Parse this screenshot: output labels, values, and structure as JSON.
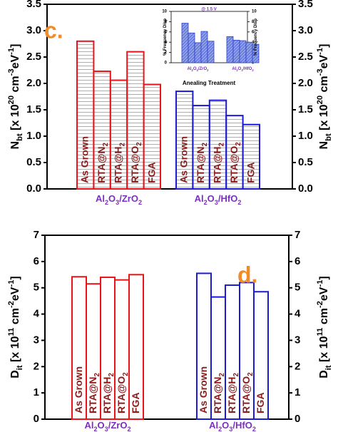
{
  "chart_data": [
    {
      "type": "grouped-bar",
      "panel_label": "c.",
      "ylabel": [
        {
          "text": "N"
        },
        {
          "text": "bt",
          "sub": true
        },
        {
          "text": " [x 10"
        },
        {
          "text": "20",
          "sup": true
        },
        {
          "text": " cm"
        },
        {
          "text": "-3",
          "sup": true
        },
        {
          "text": "eV"
        },
        {
          "text": "-1",
          "sup": true
        },
        {
          "text": "]"
        }
      ],
      "categories": [
        [
          {
            "text": "As Grown"
          }
        ],
        [
          {
            "text": "RTA@N"
          },
          {
            "text": "2",
            "sub": true
          }
        ],
        [
          {
            "text": "RTA@H"
          },
          {
            "text": "2",
            "sub": true
          }
        ],
        [
          {
            "text": "RTA@O"
          },
          {
            "text": "2",
            "sub": true
          }
        ],
        [
          {
            "text": "FGA"
          }
        ]
      ],
      "groups": [
        {
          "name": [
            {
              "text": "Al"
            },
            {
              "text": "2",
              "sub": true
            },
            {
              "text": "O"
            },
            {
              "text": "3",
              "sub": true
            },
            {
              "text": "/ZrO"
            },
            {
              "text": "2",
              "sub": true
            }
          ],
          "color": "#e8141a",
          "values": [
            2.8,
            2.23,
            2.06,
            2.6,
            1.98
          ]
        },
        {
          "name": [
            {
              "text": "Al"
            },
            {
              "text": "2",
              "sub": true
            },
            {
              "text": "O"
            },
            {
              "text": "3",
              "sub": true
            },
            {
              "text": "/HfO"
            },
            {
              "text": "2",
              "sub": true
            }
          ],
          "color": "#1b1bd6",
          "values": [
            1.85,
            1.58,
            1.68,
            1.39,
            1.22
          ]
        }
      ],
      "ylim": [
        0,
        3.5
      ],
      "yticks": [
        {
          "value": 0,
          "label": "0.0"
        },
        {
          "value": 0.5,
          "label": "0.5"
        },
        {
          "value": 1,
          "label": "1.0"
        },
        {
          "value": 1.5,
          "label": "1.5"
        },
        {
          "value": 2,
          "label": "2.0"
        },
        {
          "value": 2.5,
          "label": "2.5"
        },
        {
          "value": 3,
          "label": "3.0"
        },
        {
          "value": 3.5,
          "label": "3.5"
        }
      ],
      "hatch": "horizontal",
      "label_color": "#8b1a1a",
      "group_label_color": "#7b2fbf",
      "panel_label_color": "#f28c28"
    },
    {
      "type": "inset-bar",
      "title": "@ 1.5 V",
      "ylabel": [
        {
          "text": "% Frequency Disp"
        }
      ],
      "xlabel": [
        {
          "text": "Anealing Treatment"
        }
      ],
      "groups": [
        {
          "name": [
            {
              "text": "Al"
            },
            {
              "text": "2",
              "sub": true
            },
            {
              "text": "O"
            },
            {
              "text": "3",
              "sub": true
            },
            {
              "text": "/ZrO"
            },
            {
              "text": "2",
              "sub": true
            }
          ],
          "color": "#2a3fc8",
          "values": [
            7.7,
            5.8,
            3.9,
            6.1,
            4.2
          ]
        },
        {
          "name": [
            {
              "text": "Al"
            },
            {
              "text": "2",
              "sub": true
            },
            {
              "text": "O"
            },
            {
              "text": "3",
              "sub": true
            },
            {
              "text": "/HfO"
            },
            {
              "text": "2",
              "sub": true
            }
          ],
          "color": "#2a3fc8",
          "values": [
            5.1,
            4.4,
            4.3,
            4.0,
            3.6
          ]
        }
      ],
      "ylim": [
        0,
        10
      ],
      "yticks": [
        0,
        2,
        4,
        6,
        8,
        10
      ],
      "hatch": "diagonal",
      "title_color": "#7b2fbf",
      "group_label_color": "#7b2fbf"
    },
    {
      "type": "grouped-bar",
      "panel_label": "d.",
      "ylabel": [
        {
          "text": "D"
        },
        {
          "text": "it",
          "sub": true
        },
        {
          "text": " [x 10"
        },
        {
          "text": "11",
          "sup": true
        },
        {
          "text": " cm"
        },
        {
          "text": "-2",
          "sup": true
        },
        {
          "text": "eV"
        },
        {
          "text": "-1",
          "sup": true
        },
        {
          "text": "]"
        }
      ],
      "categories": [
        [
          {
            "text": "As Grown"
          }
        ],
        [
          {
            "text": "RTA@N"
          },
          {
            "text": "2",
            "sub": true
          }
        ],
        [
          {
            "text": "RTA@H"
          },
          {
            "text": "2",
            "sub": true
          }
        ],
        [
          {
            "text": "RTA@O"
          },
          {
            "text": "2",
            "sub": true
          }
        ],
        [
          {
            "text": "FGA"
          }
        ]
      ],
      "groups": [
        {
          "name": [
            {
              "text": "Al"
            },
            {
              "text": "2",
              "sub": true
            },
            {
              "text": "O"
            },
            {
              "text": "3",
              "sub": true
            },
            {
              "text": "/ZrO"
            },
            {
              "text": "2",
              "sub": true
            }
          ],
          "color": "#e8141a",
          "values": [
            5.42,
            5.15,
            5.4,
            5.3,
            5.5
          ]
        },
        {
          "name": [
            {
              "text": "Al"
            },
            {
              "text": "2",
              "sub": true
            },
            {
              "text": "O"
            },
            {
              "text": "3",
              "sub": true
            },
            {
              "text": "/HfO"
            },
            {
              "text": "2",
              "sub": true
            }
          ],
          "color": "#1b1bd6",
          "values": [
            5.55,
            4.65,
            5.1,
            5.2,
            4.85
          ]
        }
      ],
      "ylim": [
        0,
        7
      ],
      "yticks": [
        0,
        1,
        2,
        3,
        4,
        5,
        6,
        7
      ],
      "hatch": "none",
      "label_color": "#8b1a1a",
      "group_label_color": "#7b2fbf",
      "panel_label_color": "#f28c28"
    }
  ]
}
